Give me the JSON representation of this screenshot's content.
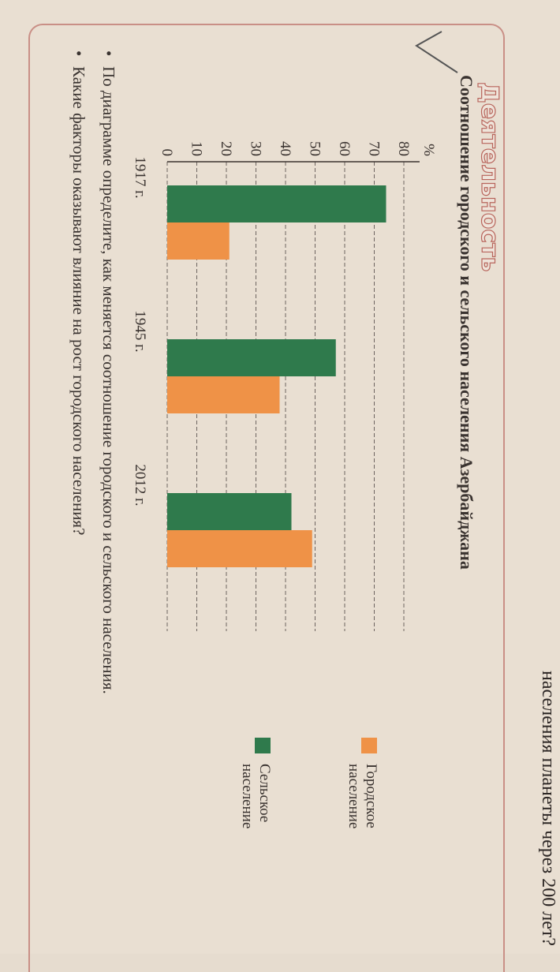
{
  "top_text": "населения планеты через 200 лет?",
  "section": "Деятельность",
  "chart_data": {
    "type": "bar",
    "title": "Соотношение городского и сельского населения Азербайджана",
    "y_label": "%",
    "categories": [
      "1917 г.",
      "1945 г.",
      "2012 г."
    ],
    "series": [
      {
        "name": "Городское население",
        "color": "#ef9247",
        "values": [
          21,
          38,
          49
        ]
      },
      {
        "name": "Сельское население",
        "color": "#2f7a4c",
        "values": [
          74,
          57,
          42
        ]
      }
    ],
    "ylim": [
      0,
      80
    ],
    "yticks": [
      0,
      10,
      20,
      30,
      40,
      50,
      60,
      70,
      80
    ],
    "grid": true
  },
  "questions": [
    "По диаграмме определите, как меняется соотношение городского и сельского населения.",
    "Какие факторы оказывают влияние на рост городского населения?"
  ]
}
